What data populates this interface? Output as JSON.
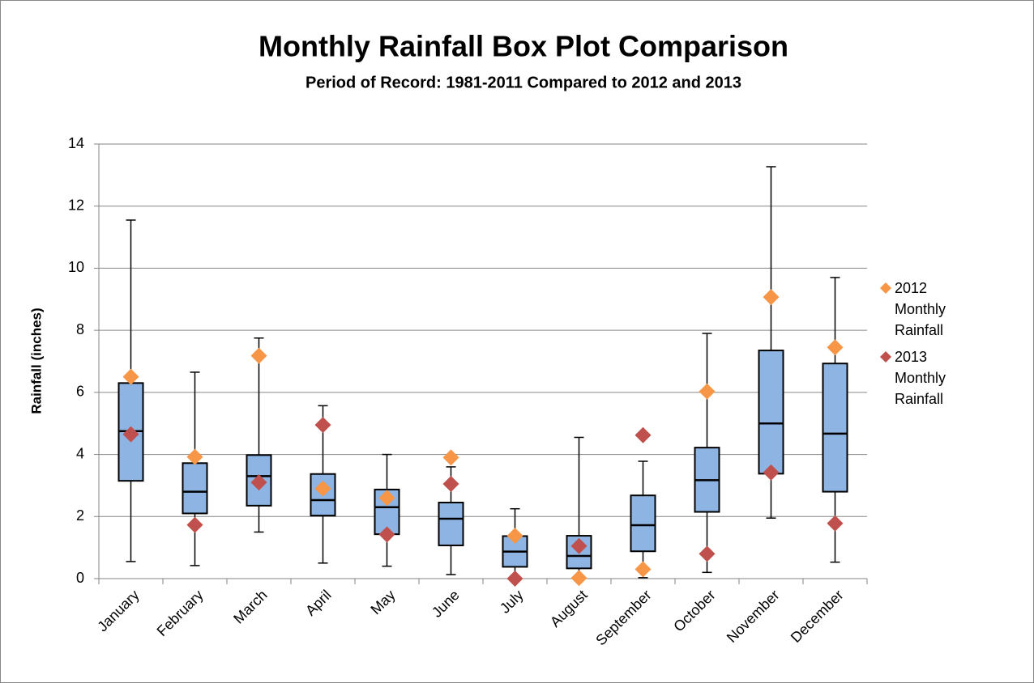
{
  "chart_data": {
    "type": "box",
    "title": "Monthly Rainfall Box Plot Comparison",
    "subtitle": "Period of Record: 1981-2011 Compared to 2012 and 2013",
    "y_label": "Rainfall (inches)",
    "categories": [
      "January",
      "February",
      "March",
      "April",
      "May",
      "June",
      "July",
      "August",
      "September",
      "October",
      "November",
      "December"
    ],
    "box": {
      "color": "#8db4e2",
      "min": [
        0.55,
        0.42,
        1.5,
        0.5,
        0.4,
        0.13,
        0.01,
        0.03,
        0.03,
        0.2,
        1.95,
        0.53
      ],
      "q1": [
        3.15,
        2.1,
        2.35,
        2.03,
        1.43,
        1.07,
        0.38,
        0.33,
        0.88,
        2.15,
        3.38,
        2.8
      ],
      "median": [
        4.75,
        2.8,
        3.3,
        2.53,
        2.3,
        1.93,
        0.87,
        0.73,
        1.72,
        3.17,
        5.0,
        4.67
      ],
      "q3": [
        6.3,
        3.72,
        3.98,
        3.37,
        2.87,
        2.45,
        1.37,
        1.38,
        2.68,
        4.22,
        7.35,
        6.93
      ],
      "max": [
        11.55,
        6.65,
        7.75,
        5.57,
        4.0,
        3.6,
        2.25,
        4.55,
        3.78,
        7.9,
        13.27,
        9.7
      ]
    },
    "series": [
      {
        "name": "2012 Monthly Rainfall",
        "color": "#f79646",
        "values": [
          6.5,
          3.92,
          7.18,
          2.9,
          2.6,
          3.9,
          1.38,
          0.02,
          0.3,
          6.03,
          9.07,
          7.45
        ]
      },
      {
        "name": "2013 Monthly Rainfall",
        "color": "#c0504d",
        "values": [
          4.65,
          1.73,
          3.1,
          4.95,
          1.42,
          3.05,
          0.0,
          1.05,
          4.62,
          0.8,
          3.42,
          1.78
        ]
      }
    ],
    "ylim": [
      0,
      14
    ],
    "yticks": [
      0,
      2,
      4,
      6,
      8,
      10,
      12,
      14
    ],
    "grid": true,
    "legend": "right"
  }
}
